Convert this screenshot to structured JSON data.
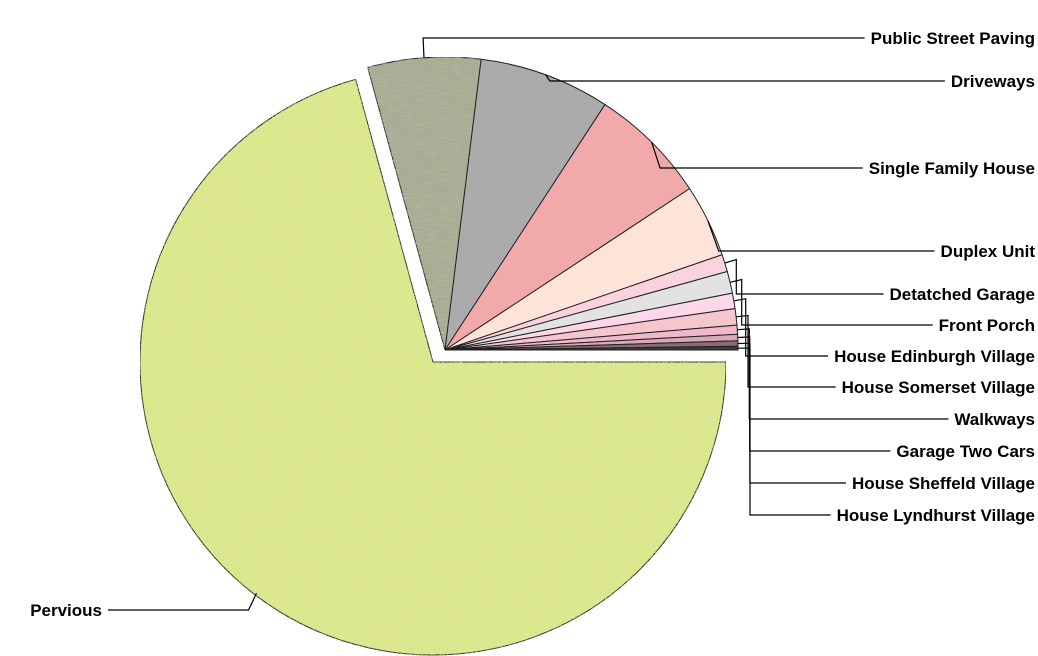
{
  "chart_data": {
    "type": "pie",
    "title": "",
    "legend": "none",
    "slices": [
      {
        "label": "Pervious",
        "value": 70.5,
        "color": "#dfe98c",
        "texture": "speckle-green",
        "exploded": true
      },
      {
        "label": "Public Street Paving",
        "value": 6.2,
        "color": "#a8ac92",
        "texture": "speckle-gray"
      },
      {
        "label": "Driveways",
        "value": 7.2,
        "color": "#ababab"
      },
      {
        "label": "Single Family House",
        "value": 6.5,
        "color": "#f2a9aa"
      },
      {
        "label": "Duplex Unit",
        "value": 4.0,
        "color": "#fee3d8"
      },
      {
        "label": "Detatched Garage",
        "value": 0.95,
        "color": "#fbd3de"
      },
      {
        "label": "Front Porch",
        "value": 1.2,
        "color": "#e2e2e2"
      },
      {
        "label": "House Edinburgh Village",
        "value": 0.85,
        "color": "#ffd7ea"
      },
      {
        "label": "House Somerset Village",
        "value": 0.9,
        "color": "#f6c6ce"
      },
      {
        "label": "Walkways",
        "value": 0.5,
        "color": "#f0b8c8"
      },
      {
        "label": "Garage Two Cars",
        "value": 0.35,
        "color": "#d9a9b6"
      },
      {
        "label": "House Sheffeld Village",
        "value": 0.3,
        "color": "#8c6b74"
      },
      {
        "label": "House Lyndhurst Village",
        "value": 0.2,
        "color": "#3b3b3b"
      }
    ]
  }
}
